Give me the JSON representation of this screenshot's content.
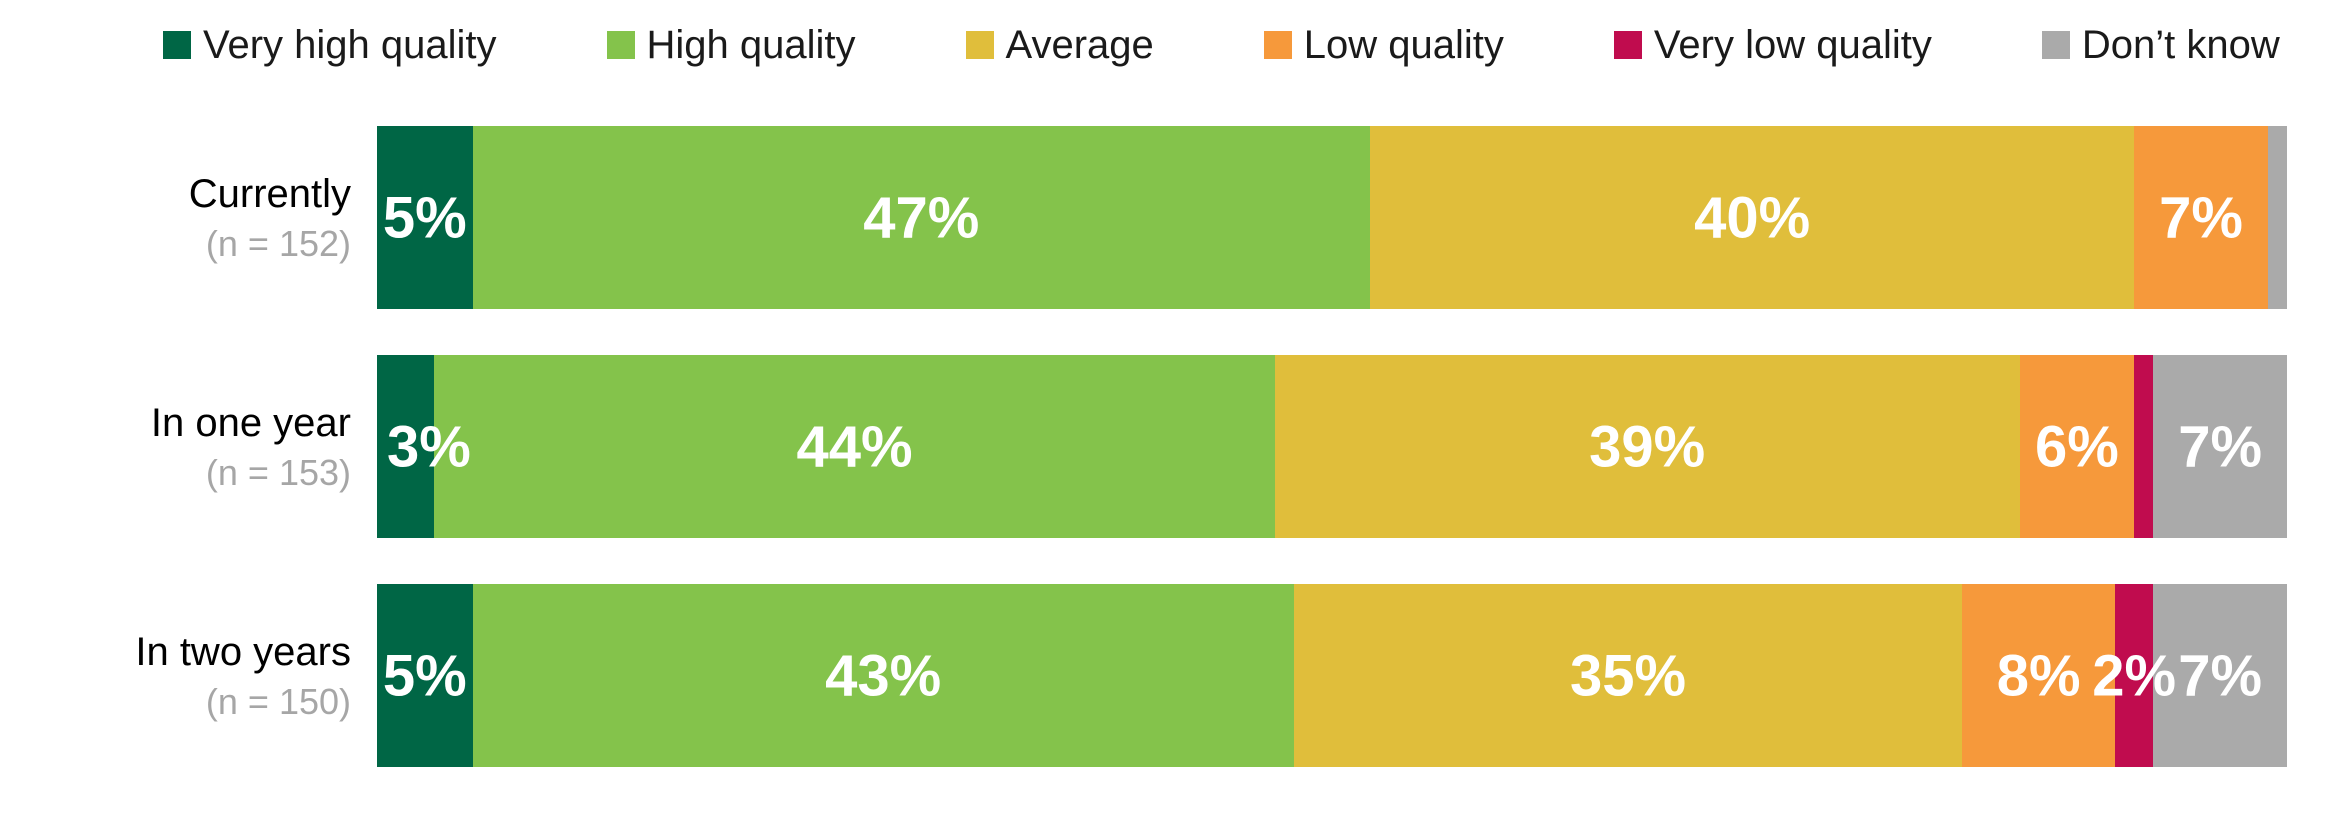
{
  "chart_data": {
    "type": "bar",
    "orientation": "horizontal",
    "stacked": true,
    "value_unit": "%",
    "grid": false,
    "axes_visible": false,
    "legend_position": "top",
    "categories": [
      "Currently",
      "In one year",
      "In two years"
    ],
    "category_notes": [
      "(n = 152)",
      "(n = 153)",
      "(n = 150)"
    ],
    "series": [
      {
        "name": "Very high quality",
        "color": "#006645",
        "values": [
          5,
          3,
          5
        ]
      },
      {
        "name": "High quality",
        "color": "#84C34B",
        "values": [
          47,
          44,
          43
        ]
      },
      {
        "name": "Average",
        "color": "#E0BE3B",
        "values": [
          40,
          39,
          35
        ]
      },
      {
        "name": "Low quality",
        "color": "#F6993B",
        "values": [
          7,
          6,
          8
        ]
      },
      {
        "name": "Very low quality",
        "color": "#C00C4E",
        "values": [
          0,
          1,
          2
        ]
      },
      {
        "name": "Don’t know",
        "color": "#AAAAAA",
        "values": [
          1,
          7,
          7
        ]
      }
    ],
    "data_labels": {
      "format": "{value}%",
      "min_value_for_label": 2,
      "color": "#FFFFFF"
    },
    "visible_segment_labels": {
      "Currently": [
        "5%",
        "47%",
        "40%",
        "7%"
      ],
      "In one year": [
        "3%",
        "44%",
        "39%",
        "6%",
        "7%"
      ],
      "In two years": [
        "5%",
        "43%",
        "35%",
        "8%",
        "2%",
        "7%"
      ]
    },
    "xlim": [
      0,
      100
    ]
  },
  "text_colors": {
    "category": "#000000",
    "category_note": "#A6A6A6",
    "legend": "#1A1A1A"
  }
}
